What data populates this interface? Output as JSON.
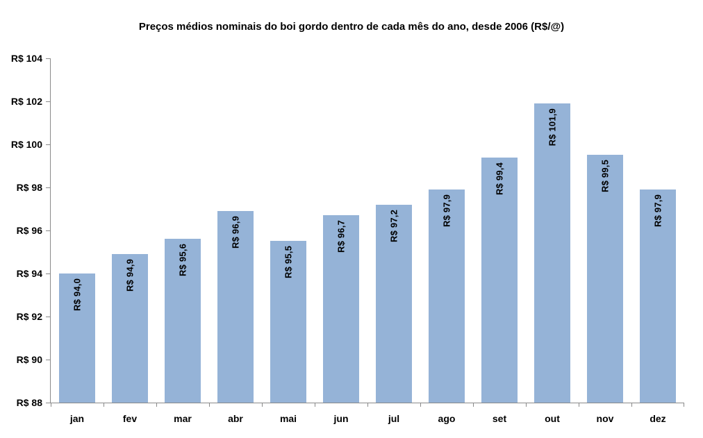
{
  "chart_data": {
    "type": "bar",
    "title": "Preços médios nominais do boi gordo dentro de cada mês do ano, desde 2006 (R$/@)",
    "categories": [
      "jan",
      "fev",
      "mar",
      "abr",
      "mai",
      "jun",
      "jul",
      "ago",
      "set",
      "out",
      "nov",
      "dez"
    ],
    "values": [
      94.0,
      94.9,
      95.6,
      96.9,
      95.5,
      96.7,
      97.2,
      97.9,
      99.4,
      101.9,
      99.5,
      97.9
    ],
    "bar_labels": [
      "R$ 94,0",
      "R$ 94,9",
      "R$ 95,6",
      "R$ 96,9",
      "R$ 95,5",
      "R$ 96,7",
      "R$ 97,2",
      "R$ 97,9",
      "R$ 99,4",
      "R$ 101,9",
      "R$ 99,5",
      "R$ 97,9"
    ],
    "xlabel": "",
    "ylabel": "",
    "ylim": [
      88,
      104
    ],
    "y_tick_step": 2,
    "y_tick_labels": [
      "R$ 88",
      "R$ 90",
      "R$ 92",
      "R$ 94",
      "R$ 96",
      "R$ 98",
      "R$ 100",
      "R$ 102",
      "R$ 104"
    ],
    "grid": false,
    "legend_position": "none",
    "colors": {
      "bar_fill": "#95B3D7",
      "axis_line": "#898989",
      "text": "#000000",
      "background": "#FFFFFF"
    }
  }
}
